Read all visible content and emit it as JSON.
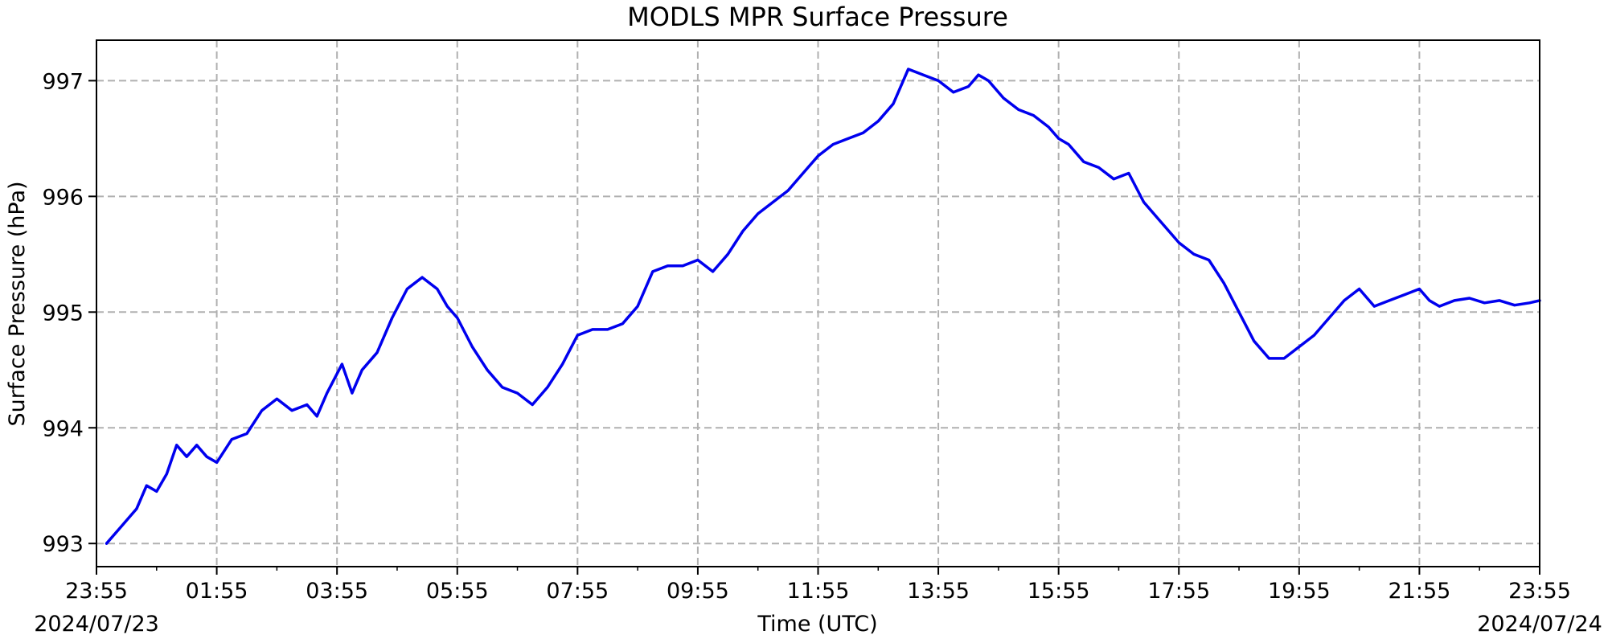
{
  "chart_data": {
    "type": "line",
    "title": "MODLS MPR Surface Pressure",
    "xlabel": "Time (UTC)",
    "ylabel": "Surface Pressure (hPa)",
    "x_start_label": "2024/07/23",
    "x_end_label": "2024/07/24",
    "xticks": [
      "23:55",
      "01:55",
      "03:55",
      "05:55",
      "07:55",
      "09:55",
      "11:55",
      "13:55",
      "15:55",
      "17:55",
      "19:55",
      "21:55",
      "23:55"
    ],
    "yticks": [
      993,
      994,
      995,
      996,
      997
    ],
    "xlim": [
      "2024-07-23 23:55",
      "2024-07-24 23:55"
    ],
    "ylim": [
      992.8,
      997.35
    ],
    "grid": true,
    "grid_style": "dashed",
    "line_color": "#0000ee",
    "series": [
      {
        "x": [
          "2024-07-24 00:05",
          "2024-07-24 00:20",
          "2024-07-24 00:35",
          "2024-07-24 00:45",
          "2024-07-24 00:55",
          "2024-07-24 01:05",
          "2024-07-24 01:15",
          "2024-07-24 01:25",
          "2024-07-24 01:35",
          "2024-07-24 01:45",
          "2024-07-24 01:55",
          "2024-07-24 02:10",
          "2024-07-24 02:25",
          "2024-07-24 02:40",
          "2024-07-24 02:55",
          "2024-07-24 03:10",
          "2024-07-24 03:25",
          "2024-07-24 03:35",
          "2024-07-24 03:45",
          "2024-07-24 04:00",
          "2024-07-24 04:10",
          "2024-07-24 04:20",
          "2024-07-24 04:35",
          "2024-07-24 04:50",
          "2024-07-24 05:05",
          "2024-07-24 05:20",
          "2024-07-24 05:35",
          "2024-07-24 05:45",
          "2024-07-24 05:55",
          "2024-07-24 06:10",
          "2024-07-24 06:25",
          "2024-07-24 06:40",
          "2024-07-24 06:55",
          "2024-07-24 07:10",
          "2024-07-24 07:25",
          "2024-07-24 07:40",
          "2024-07-24 07:55",
          "2024-07-24 08:10",
          "2024-07-24 08:25",
          "2024-07-24 08:40",
          "2024-07-24 08:55",
          "2024-07-24 09:10",
          "2024-07-24 09:25",
          "2024-07-24 09:40",
          "2024-07-24 09:55",
          "2024-07-24 10:10",
          "2024-07-24 10:25",
          "2024-07-24 10:40",
          "2024-07-24 10:55",
          "2024-07-24 11:10",
          "2024-07-24 11:25",
          "2024-07-24 11:40",
          "2024-07-24 11:55",
          "2024-07-24 12:10",
          "2024-07-24 12:25",
          "2024-07-24 12:40",
          "2024-07-24 12:55",
          "2024-07-24 13:10",
          "2024-07-24 13:25",
          "2024-07-24 13:40",
          "2024-07-24 13:55",
          "2024-07-24 14:10",
          "2024-07-24 14:25",
          "2024-07-24 14:35",
          "2024-07-24 14:45",
          "2024-07-24 15:00",
          "2024-07-24 15:15",
          "2024-07-24 15:30",
          "2024-07-24 15:45",
          "2024-07-24 15:55",
          "2024-07-24 16:05",
          "2024-07-24 16:20",
          "2024-07-24 16:35",
          "2024-07-24 16:50",
          "2024-07-24 17:05",
          "2024-07-24 17:20",
          "2024-07-24 17:35",
          "2024-07-24 17:55",
          "2024-07-24 18:10",
          "2024-07-24 18:25",
          "2024-07-24 18:40",
          "2024-07-24 18:55",
          "2024-07-24 19:10",
          "2024-07-24 19:25",
          "2024-07-24 19:40",
          "2024-07-24 19:55",
          "2024-07-24 20:10",
          "2024-07-24 20:25",
          "2024-07-24 20:40",
          "2024-07-24 20:55",
          "2024-07-24 21:10",
          "2024-07-24 21:25",
          "2024-07-24 21:40",
          "2024-07-24 21:55",
          "2024-07-24 22:05",
          "2024-07-24 22:15",
          "2024-07-24 22:30",
          "2024-07-24 22:45",
          "2024-07-24 23:00",
          "2024-07-24 23:15",
          "2024-07-24 23:30",
          "2024-07-24 23:45",
          "2024-07-24 23:55"
        ],
        "y": [
          993.0,
          993.15,
          993.3,
          993.5,
          993.45,
          993.6,
          993.85,
          993.75,
          993.85,
          993.75,
          993.7,
          993.9,
          993.95,
          994.15,
          994.25,
          994.15,
          994.2,
          994.1,
          994.3,
          994.55,
          994.3,
          994.5,
          994.65,
          994.95,
          995.2,
          995.3,
          995.2,
          995.05,
          994.95,
          994.7,
          994.5,
          994.35,
          994.3,
          994.2,
          994.35,
          994.55,
          994.8,
          994.85,
          994.85,
          994.9,
          995.05,
          995.35,
          995.4,
          995.4,
          995.45,
          995.35,
          995.5,
          995.7,
          995.85,
          995.95,
          996.05,
          996.2,
          996.35,
          996.45,
          996.5,
          996.55,
          996.65,
          996.8,
          997.1,
          997.05,
          997.0,
          996.9,
          996.95,
          997.05,
          997.0,
          996.85,
          996.75,
          996.7,
          996.6,
          996.5,
          996.45,
          996.3,
          996.25,
          996.15,
          996.2,
          995.95,
          995.8,
          995.6,
          995.5,
          995.45,
          995.25,
          995.0,
          994.75,
          994.6,
          994.6,
          994.7,
          994.8,
          994.95,
          995.1,
          995.2,
          995.05,
          995.1,
          995.15,
          995.2,
          995.1,
          995.05,
          995.1,
          995.12,
          995.08,
          995.1,
          995.06,
          995.08,
          995.1
        ]
      }
    ]
  }
}
